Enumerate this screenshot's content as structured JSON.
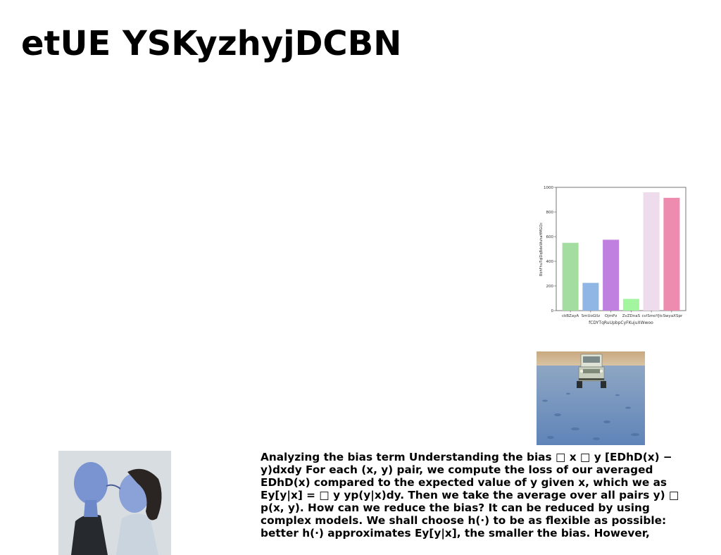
{
  "page": {
    "title": "etUE YSKyzhyjDCBN"
  },
  "figures": {
    "jeep_photo": {
      "icon": "jeep-on-salt-flat-photo"
    },
    "couple_photo": {
      "icon": "couple-kissing-photo"
    }
  },
  "chart_data": {
    "type": "bar",
    "categories": [
      "ckBZayA",
      "SmUoGllz",
      "OjmPz",
      "ZvZDnaS",
      "cvlSmoYJt",
      "cSwyaXSpr"
    ],
    "values": [
      550,
      225,
      575,
      95,
      960,
      915
    ],
    "colors": [
      "#a3dea0",
      "#8fb6e4",
      "#bf80e0",
      "#a3f5a0",
      "#eedcec",
      "#ee8cb0"
    ],
    "xlabel": "fCDYTqRuUpbpCyFKujuXWwoo",
    "ylabel": "BbhFhuTqIDqBdeWuhaHMGQc",
    "ylim": [
      0,
      1000
    ],
    "yticks": [
      "0",
      "200",
      "400",
      "600",
      "800",
      "1000"
    ],
    "grid": false
  },
  "body": {
    "text": "Analyzing the bias term Understanding the bias □ x □ y [EDhD(x) − y)dxdy For each (x, y) pair, we compute the loss of our averaged EDhD(x) compared to the expected value of y given x, which we as Ey[y|x] = □ y yp(y|x)dy. Then we take the average over all pairs y) □ p(x, y). How can we reduce the bias? It can be reduced by using complex models. We shall choose h(·) to be as flexible as possible: better h(·) approximates Ey[y|x], the smaller the bias. However,"
  }
}
